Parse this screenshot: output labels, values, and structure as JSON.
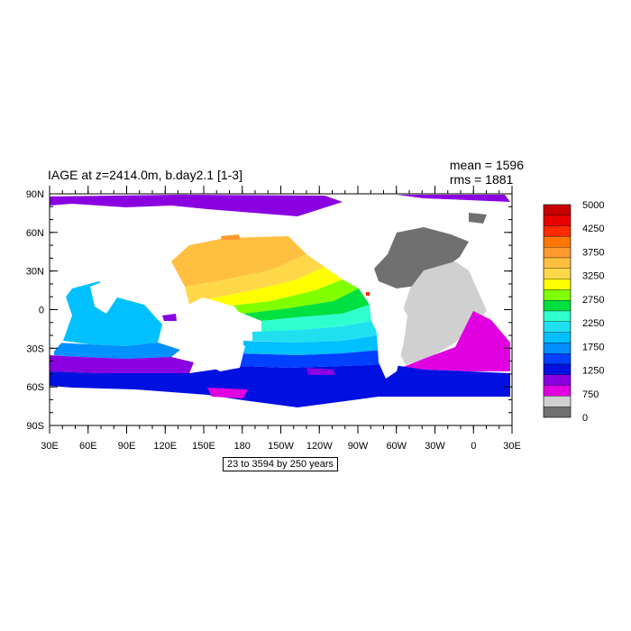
{
  "title": "IAGE at z=2414.0m, b.day2.1 [1-3]",
  "stats": {
    "mean": "mean = 1596",
    "rms": "rms = 1881"
  },
  "range_note": "23 to 3594 by 250 years",
  "axes": {
    "lat_labels": [
      "90N",
      "60N",
      "30N",
      "0",
      "30S",
      "60S",
      "90S"
    ],
    "lon_labels": [
      "30E",
      "60E",
      "90E",
      "120E",
      "150E",
      "180",
      "150W",
      "120W",
      "90W",
      "60W",
      "30W",
      "0",
      "30E"
    ]
  },
  "legend": {
    "colors": [
      "#c80000",
      "#e60000",
      "#ff2a00",
      "#ff7700",
      "#ff9a30",
      "#ffc040",
      "#ffd84a",
      "#ffff00",
      "#80ff00",
      "#00e040",
      "#30ffd0",
      "#20e0f0",
      "#00c0ff",
      "#0090ff",
      "#0040ff",
      "#0010e0",
      "#8a00e0",
      "#e000e0",
      "#d0d0d0",
      "#707070"
    ],
    "labels": [
      "5000",
      "4250",
      "3750",
      "3250",
      "2750",
      "2250",
      "1750",
      "1250",
      "750",
      "0"
    ]
  }
}
